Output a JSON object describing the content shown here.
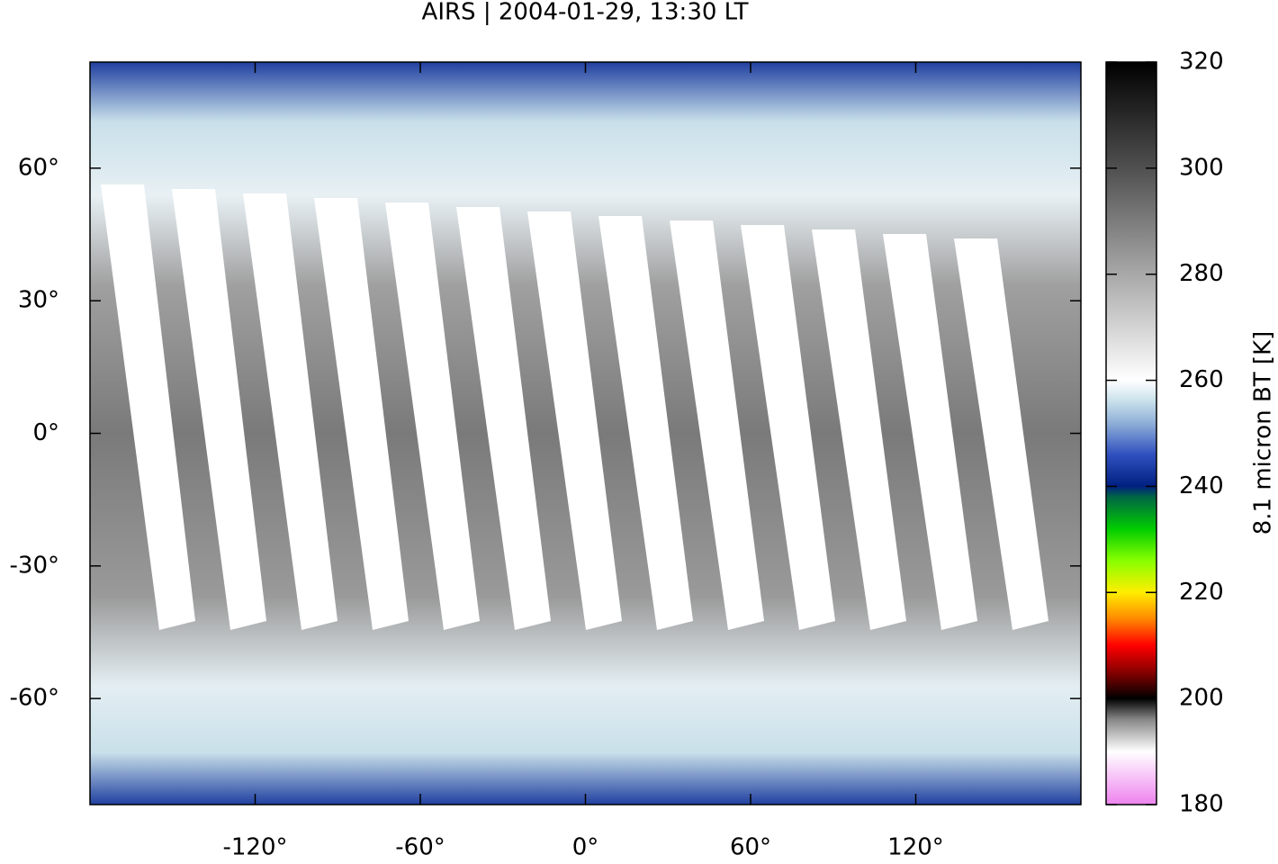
{
  "chart_data": {
    "type": "map",
    "title": "AIRS | 2004-01-29, 13:30 LT",
    "xlim": [
      -180,
      180
    ],
    "ylim": [
      -84,
      84
    ],
    "xticks": [
      {
        "value": -120,
        "label": "-120°"
      },
      {
        "value": -60,
        "label": "-60°"
      },
      {
        "value": 0,
        "label": "0°"
      },
      {
        "value": 60,
        "label": "60°"
      },
      {
        "value": 120,
        "label": "120°"
      }
    ],
    "yticks": [
      {
        "value": -60,
        "label": "-60°"
      },
      {
        "value": -30,
        "label": "-30°"
      },
      {
        "value": 0,
        "label": "0°"
      },
      {
        "value": 30,
        "label": "30°"
      },
      {
        "value": 60,
        "label": "60°"
      }
    ],
    "colorbar": {
      "label": "8.1 micron BT [K]",
      "lim": [
        180,
        320
      ],
      "ticks": [
        180,
        200,
        220,
        240,
        260,
        280,
        300,
        320
      ],
      "colormap": [
        {
          "value": 180,
          "color": "#ee82ee"
        },
        {
          "value": 190,
          "color": "#ffffff"
        },
        {
          "value": 196,
          "color": "#888888"
        },
        {
          "value": 200,
          "color": "#000000"
        },
        {
          "value": 205,
          "color": "#880000"
        },
        {
          "value": 210,
          "color": "#ff0000"
        },
        {
          "value": 215,
          "color": "#ff8800"
        },
        {
          "value": 220,
          "color": "#ffee00"
        },
        {
          "value": 226,
          "color": "#88ff00"
        },
        {
          "value": 232,
          "color": "#00cc00"
        },
        {
          "value": 238,
          "color": "#006644"
        },
        {
          "value": 240,
          "color": "#002080"
        },
        {
          "value": 246,
          "color": "#3050c0"
        },
        {
          "value": 252,
          "color": "#90b0d8"
        },
        {
          "value": 256,
          "color": "#c8e0ea"
        },
        {
          "value": 260,
          "color": "#ffffff"
        },
        {
          "value": 280,
          "color": "#a8a8a8"
        },
        {
          "value": 300,
          "color": "#505050"
        },
        {
          "value": 320,
          "color": "#000000"
        }
      ]
    }
  }
}
